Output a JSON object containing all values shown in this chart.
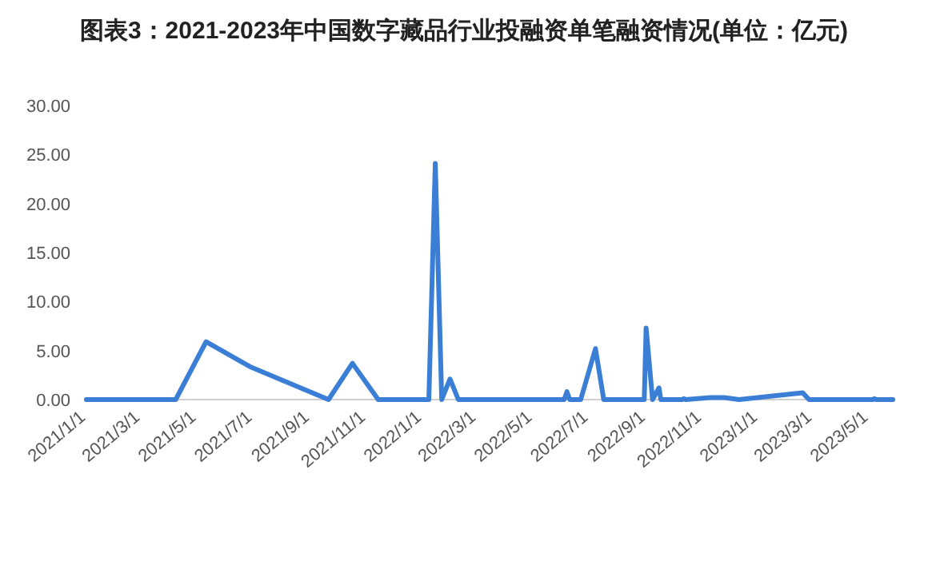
{
  "chart_data": {
    "type": "line",
    "title": "图表3：2021-2023年中国数字藏品行业投融资单笔融资情况(单位：亿元)",
    "x": [
      "2021-01-01",
      "2021-04-08",
      "2021-05-11",
      "2021-06-29",
      "2021-09-21",
      "2021-10-17",
      "2021-11-14",
      "2022-01-08",
      "2022-01-15",
      "2022-01-22",
      "2022-01-31",
      "2022-02-09",
      "2022-06-04",
      "2022-06-07",
      "2022-06-10",
      "2022-06-22",
      "2022-07-08",
      "2022-07-17",
      "2022-08-30",
      "2022-09-01",
      "2022-09-08",
      "2022-09-15",
      "2022-09-17",
      "2022-10-10",
      "2022-10-12",
      "2022-10-14",
      "2022-11-10",
      "2022-11-25",
      "2022-12-11",
      "2023-02-18",
      "2023-02-25",
      "2023-05-05",
      "2023-05-07",
      "2023-05-09",
      "2023-05-27"
    ],
    "series": [
      {
        "color": "#3a7fd5",
        "values": [
          0,
          0,
          5.9,
          3.3,
          0,
          3.7,
          0,
          0,
          24.1,
          0,
          2.1,
          0,
          0,
          0.8,
          0,
          0,
          5.2,
          0,
          0,
          7.3,
          0,
          1.2,
          0,
          0,
          0.1,
          0,
          0.2,
          0.2,
          0,
          0.7,
          0,
          0,
          0.1,
          0,
          0
        ]
      }
    ],
    "xlim": [
      "2021-01-01",
      "2023-05-27"
    ],
    "xticks": [
      {
        "value": "2021-01-01",
        "label": "2021/1/1"
      },
      {
        "value": "2021-03-01",
        "label": "2021/3/1"
      },
      {
        "value": "2021-05-01",
        "label": "2021/5/1"
      },
      {
        "value": "2021-07-01",
        "label": "2021/7/1"
      },
      {
        "value": "2021-09-01",
        "label": "2021/9/1"
      },
      {
        "value": "2021-11-01",
        "label": "2021/11/1"
      },
      {
        "value": "2022-01-01",
        "label": "2022/1/1"
      },
      {
        "value": "2022-03-01",
        "label": "2022/3/1"
      },
      {
        "value": "2022-05-01",
        "label": "2022/5/1"
      },
      {
        "value": "2022-07-01",
        "label": "2022/7/1"
      },
      {
        "value": "2022-09-01",
        "label": "2022/9/1"
      },
      {
        "value": "2022-11-01",
        "label": "2022/11/1"
      },
      {
        "value": "2023-01-01",
        "label": "2023/1/1"
      },
      {
        "value": "2023-03-01",
        "label": "2023/3/1"
      },
      {
        "value": "2023-05-01",
        "label": "2023/5/1"
      }
    ],
    "ylim": [
      0,
      30
    ],
    "yticks": [
      {
        "value": 0,
        "label": "0.00"
      },
      {
        "value": 5,
        "label": "5.00"
      },
      {
        "value": 10,
        "label": "10.00"
      },
      {
        "value": 15,
        "label": "15.00"
      },
      {
        "value": 20,
        "label": "20.00"
      },
      {
        "value": 25,
        "label": "25.00"
      },
      {
        "value": 30,
        "label": "30.00"
      }
    ],
    "grid": false,
    "marker": "none",
    "line_style": "solid"
  }
}
